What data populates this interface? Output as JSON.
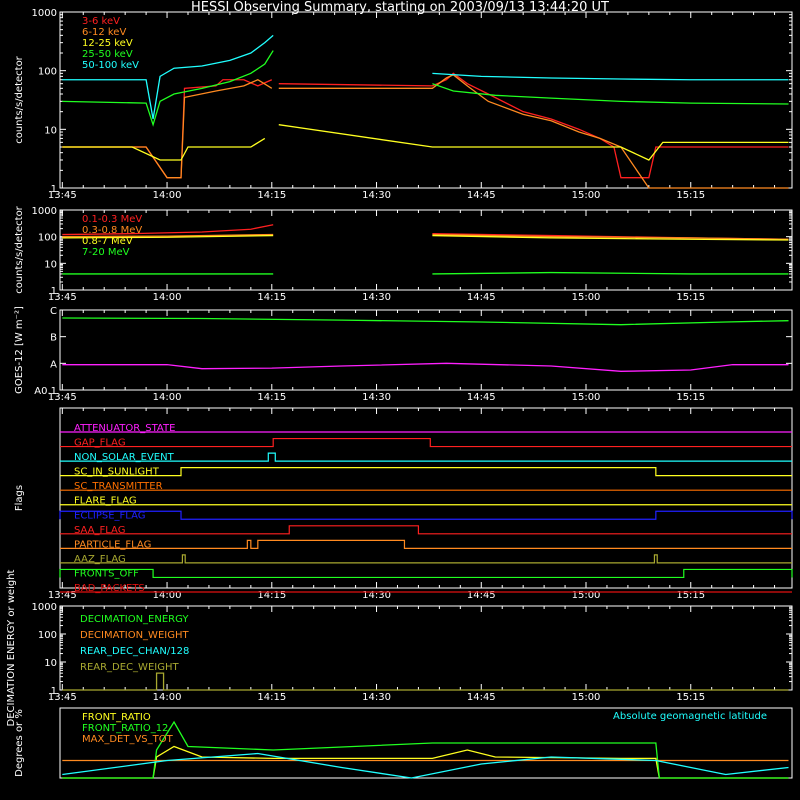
{
  "title": "HESSI Observing Summary, starting on 2003/09/13 13:44:20 UT",
  "colors": {
    "bg": "#000000",
    "axis": "#ffffff",
    "red": "#ff2020",
    "orange": "#ff8a20",
    "yellow": "#ffff20",
    "green": "#20ff20",
    "cyan": "#20ffff",
    "magenta": "#ff20ff",
    "blue": "#2020ff",
    "olive": "#a8a830",
    "darkred": "#e01010",
    "darkorange": "#ff7000",
    "gold": "#d8b020"
  },
  "chart_data": [
    {
      "type": "line",
      "panel": "low-energy-rates",
      "ylabel": "counts/s/detector",
      "yscale": "log",
      "ylim": [
        1,
        1000
      ],
      "yticks": [
        "1",
        "10",
        "100",
        "1000"
      ],
      "xlim_min": [
        -0.33,
        104.5
      ],
      "xticks": [
        "13:45",
        "14:00",
        "14:15",
        "14:30",
        "14:45",
        "15:00",
        "15:15"
      ],
      "gaps": [
        [
          30.2,
          52.7
        ],
        [
          -1,
          -1
        ]
      ],
      "series": [
        {
          "name": "3-6 keV",
          "color": "red",
          "points": [
            [
              0,
              5
            ],
            [
              12,
              5
            ],
            [
              15,
              1.5
            ],
            [
              17,
              1.5
            ],
            [
              17.5,
              50
            ],
            [
              22,
              55
            ],
            [
              23,
              70
            ],
            [
              26,
              70
            ],
            [
              28,
              55
            ],
            [
              30,
              70
            ],
            [
              31,
              60
            ],
            [
              53,
              55
            ],
            [
              55,
              70
            ],
            [
              56,
              90
            ],
            [
              58,
              60
            ],
            [
              61,
              40
            ],
            [
              66,
              20
            ],
            [
              70,
              15
            ],
            [
              74,
              10
            ],
            [
              77,
              7
            ],
            [
              79,
              5
            ],
            [
              80,
              1.5
            ],
            [
              84,
              1.5
            ],
            [
              85,
              5
            ],
            [
              104,
              5
            ]
          ]
        },
        {
          "name": "6-12 keV",
          "color": "orange",
          "points": [
            [
              0,
              5
            ],
            [
              12,
              5
            ],
            [
              15,
              1.5
            ],
            [
              17,
              1.5
            ],
            [
              17.5,
              35
            ],
            [
              22,
              45
            ],
            [
              26,
              55
            ],
            [
              28,
              70
            ],
            [
              30,
              50
            ],
            [
              31,
              50
            ],
            [
              53,
              50
            ],
            [
              55,
              75
            ],
            [
              56,
              85
            ],
            [
              58,
              55
            ],
            [
              61,
              30
            ],
            [
              66,
              18
            ],
            [
              70,
              14
            ],
            [
              74,
              9
            ],
            [
              77,
              7
            ],
            [
              80,
              5
            ],
            [
              84,
              1
            ],
            [
              85,
              1
            ],
            [
              104,
              1
            ]
          ]
        },
        {
          "name": "12-25 keV",
          "color": "yellow",
          "points": [
            [
              0,
              5
            ],
            [
              10,
              5
            ],
            [
              14,
              3
            ],
            [
              17,
              3
            ],
            [
              18,
              5
            ],
            [
              27,
              5
            ],
            [
              29,
              7
            ],
            [
              31,
              12
            ],
            [
              53,
              5
            ],
            [
              64,
              5
            ],
            [
              70,
              5
            ],
            [
              80,
              5
            ],
            [
              84,
              3
            ],
            [
              86,
              6
            ],
            [
              104,
              6
            ]
          ]
        },
        {
          "name": "25-50 keV",
          "color": "green",
          "points": [
            [
              0,
              30
            ],
            [
              12,
              28
            ],
            [
              13,
              12
            ],
            [
              14,
              30
            ],
            [
              16,
              40
            ],
            [
              20,
              50
            ],
            [
              24,
              65
            ],
            [
              27,
              90
            ],
            [
              29,
              130
            ],
            [
              30.2,
              220
            ],
            [
              53,
              60
            ],
            [
              56,
              45
            ],
            [
              62,
              38
            ],
            [
              70,
              34
            ],
            [
              80,
              30
            ],
            [
              90,
              28
            ],
            [
              104,
              27
            ]
          ]
        },
        {
          "name": "50-100 keV",
          "color": "cyan",
          "points": [
            [
              0,
              70
            ],
            [
              12,
              70
            ],
            [
              13,
              15
            ],
            [
              14,
              80
            ],
            [
              16,
              110
            ],
            [
              20,
              120
            ],
            [
              24,
              150
            ],
            [
              27,
              200
            ],
            [
              29,
              300
            ],
            [
              30.2,
              400
            ],
            [
              53,
              90
            ],
            [
              60,
              80
            ],
            [
              70,
              75
            ],
            [
              80,
              72
            ],
            [
              90,
              70
            ],
            [
              104,
              70
            ]
          ]
        }
      ]
    },
    {
      "type": "line",
      "panel": "high-energy-rates",
      "ylabel": "counts/s/detector",
      "yscale": "log",
      "ylim": [
        1,
        1000
      ],
      "yticks": [
        "1",
        "10",
        "100",
        "1000"
      ],
      "xlim_min": [
        -0.33,
        104.5
      ],
      "xticks": [
        "13:45",
        "14:00",
        "14:15",
        "14:30",
        "14:45",
        "15:00",
        "15:15"
      ],
      "series": [
        {
          "name": "0.1-0.3 MeV",
          "color": "red",
          "points": [
            [
              0,
              120
            ],
            [
              10,
              130
            ],
            [
              20,
              150
            ],
            [
              27,
              190
            ],
            [
              30.2,
              280
            ],
            [
              53,
              130
            ],
            [
              70,
              110
            ],
            [
              90,
              90
            ],
            [
              104,
              80
            ]
          ]
        },
        {
          "name": "0.3-0.8 MeV",
          "color": "orange",
          "points": [
            [
              0,
              100
            ],
            [
              15,
              105
            ],
            [
              30.2,
              120
            ],
            [
              53,
              120
            ],
            [
              70,
              100
            ],
            [
              90,
              90
            ],
            [
              104,
              80
            ]
          ]
        },
        {
          "name": "0.8-7 MeV",
          "color": "yellow",
          "points": [
            [
              0,
              90
            ],
            [
              15,
              95
            ],
            [
              30.2,
              110
            ],
            [
              53,
              110
            ],
            [
              70,
              90
            ],
            [
              90,
              80
            ],
            [
              104,
              75
            ]
          ]
        },
        {
          "name": "7-20 MeV",
          "color": "green",
          "points": [
            [
              0,
              4
            ],
            [
              30.2,
              4
            ],
            [
              53,
              4
            ],
            [
              70,
              4.5
            ],
            [
              90,
              4
            ],
            [
              104,
              4
            ]
          ]
        }
      ]
    },
    {
      "type": "line",
      "panel": "goes",
      "ylabel": "GOES-12 [W m⁻²]",
      "yticks": [
        "A0.1",
        "A",
        "B",
        "C"
      ],
      "xlim_min": [
        -0.33,
        104.5
      ],
      "xticks": [
        "13:45",
        "14:00",
        "14:15",
        "14:30",
        "14:45",
        "15:00",
        "15:15"
      ],
      "series": [
        {
          "name": "",
          "color": "green",
          "points": [
            [
              0,
              2.7
            ],
            [
              20,
              2.68
            ],
            [
              40,
              2.62
            ],
            [
              60,
              2.55
            ],
            [
              80,
              2.45
            ],
            [
              95,
              2.55
            ],
            [
              104,
              2.6
            ]
          ]
        },
        {
          "name": "",
          "color": "magenta",
          "points": [
            [
              0,
              0.95
            ],
            [
              15,
              0.95
            ],
            [
              20,
              0.8
            ],
            [
              30,
              0.82
            ],
            [
              40,
              0.9
            ],
            [
              55,
              1.0
            ],
            [
              70,
              0.9
            ],
            [
              80,
              0.7
            ],
            [
              90,
              0.75
            ],
            [
              96,
              0.95
            ],
            [
              104,
              0.95
            ]
          ]
        }
      ]
    },
    {
      "type": "line",
      "panel": "flags",
      "ylabel": "Flags",
      "xlim_min": [
        -0.33,
        104.5
      ],
      "xticks": [
        "13:45",
        "14:00",
        "14:15",
        "14:30",
        "14:45",
        "15:00",
        "15:15"
      ],
      "flags": [
        {
          "name": "ATTENUATOR_STATE",
          "color": "magenta",
          "on": []
        },
        {
          "name": "GAP_FLAG",
          "color": "red",
          "on": [
            [
              30.2,
              52.7
            ]
          ]
        },
        {
          "name": "NON_SOLAR_EVENT",
          "color": "cyan",
          "on": [
            [
              29.5,
              30.5
            ]
          ]
        },
        {
          "name": "SC_IN_SUNLIGHT",
          "color": "yellow",
          "on": [
            [
              17,
              85
            ]
          ]
        },
        {
          "name": "SC_TRANSMITTER",
          "color": "darkorange",
          "on": []
        },
        {
          "name": "FLARE_FLAG",
          "color": "yellow",
          "on": []
        },
        {
          "name": "ECLIPSE_FLAG",
          "color": "blue",
          "on": [
            [
              -0.33,
              17
            ],
            [
              85,
              104.5
            ]
          ]
        },
        {
          "name": "SAA_FLAG",
          "color": "red",
          "on": [
            [
              32.5,
              51
            ]
          ]
        },
        {
          "name": "PARTICLE_FLAG",
          "color": "orange",
          "on": [
            [
              26.5,
              27
            ],
            [
              28,
              49
            ]
          ]
        },
        {
          "name": "AAZ_FLAG",
          "color": "olive",
          "on": [
            [
              17.2,
              17.6
            ],
            [
              84.8,
              85.2
            ]
          ]
        },
        {
          "name": "FRONTS_OFF",
          "color": "green",
          "on": [
            [
              -0.33,
              13
            ],
            [
              89,
              104.5
            ]
          ]
        },
        {
          "name": "BAD_PACKETS",
          "color": "darkred",
          "on": []
        }
      ]
    },
    {
      "type": "line",
      "panel": "decimation",
      "ylabel": "DECIMATION ENERGY or weight",
      "yscale": "log",
      "ylim": [
        1,
        1000
      ],
      "yticks": [
        "1",
        "10",
        "100",
        "1000"
      ],
      "xlim_min": [
        -0.33,
        104.5
      ],
      "xticks": [
        "13:45",
        "14:00",
        "14:15",
        "14:30",
        "14:45",
        "15:00",
        "15:15"
      ],
      "series": [
        {
          "name": "DECIMATION_ENERGY",
          "color": "green",
          "points": []
        },
        {
          "name": "DECIMATION_WEIGHT",
          "color": "orange",
          "points": []
        },
        {
          "name": "REAR_DEC_CHAN/128",
          "color": "cyan",
          "points": []
        },
        {
          "name": "REAR_DEC_WEIGHT",
          "color": "olive",
          "points": [
            [
              0,
              1
            ],
            [
              13.5,
              1
            ],
            [
              13.5,
              4
            ],
            [
              14.5,
              4
            ],
            [
              14.5,
              1
            ],
            [
              104,
              1
            ]
          ]
        }
      ]
    },
    {
      "type": "line",
      "panel": "ratios",
      "ylabel": "Degrees or %",
      "ylim": [
        0,
        100
      ],
      "xlim_min": [
        -0.33,
        104.5
      ],
      "annotation": "Absolute geomagnetic latitude",
      "series": [
        {
          "name": "FRONT_RATIO",
          "color": "yellow",
          "points": [
            [
              0,
              0
            ],
            [
              13,
              0
            ],
            [
              13.5,
              30
            ],
            [
              16,
              45
            ],
            [
              20,
              30
            ],
            [
              30.2,
              28
            ],
            [
              53,
              28
            ],
            [
              58,
              40
            ],
            [
              62,
              30
            ],
            [
              80,
              28
            ],
            [
              85,
              28
            ],
            [
              85.5,
              0
            ],
            [
              104,
              0
            ]
          ]
        },
        {
          "name": "FRONT_RATIO_12",
          "color": "green",
          "points": [
            [
              0,
              0
            ],
            [
              13,
              0
            ],
            [
              13.5,
              40
            ],
            [
              16,
              80
            ],
            [
              18,
              45
            ],
            [
              30.2,
              40
            ],
            [
              53,
              50
            ],
            [
              70,
              50
            ],
            [
              85,
              50
            ],
            [
              85.5,
              0
            ],
            [
              104,
              0
            ]
          ]
        },
        {
          "name": "MAX_DET_VS_TOT",
          "color": "orange",
          "points": [
            [
              0,
              25
            ],
            [
              30.2,
              25
            ],
            [
              53,
              25
            ],
            [
              104,
              25
            ]
          ]
        },
        {
          "name": "Absolute geomagnetic latitude",
          "color": "cyan",
          "points": [
            [
              0,
              5
            ],
            [
              15,
              25
            ],
            [
              28,
              35
            ],
            [
              40,
              15
            ],
            [
              50,
              0
            ],
            [
              60,
              20
            ],
            [
              70,
              30
            ],
            [
              85,
              25
            ],
            [
              95,
              5
            ],
            [
              104,
              15
            ]
          ]
        }
      ]
    }
  ]
}
